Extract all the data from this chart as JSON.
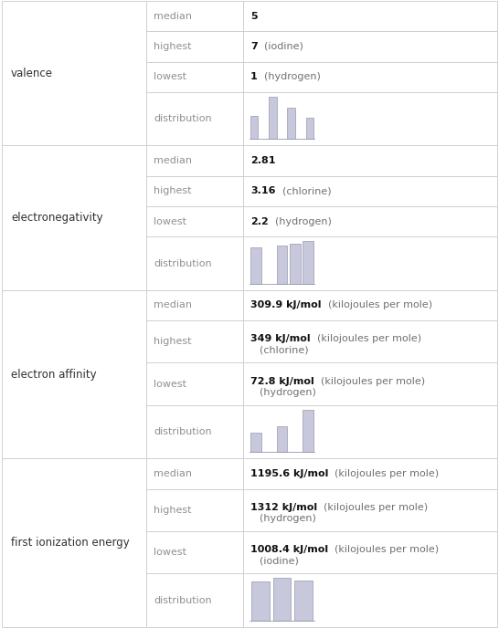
{
  "sections": [
    {
      "name": "valence",
      "rows": [
        {
          "label": "median",
          "bold": "5",
          "normal": ""
        },
        {
          "label": "highest",
          "bold": "7",
          "normal": "  (iodine)"
        },
        {
          "label": "lowest",
          "bold": "1",
          "normal": "  (hydrogen)"
        },
        {
          "label": "distribution",
          "chart_id": "valence_dist"
        }
      ]
    },
    {
      "name": "electronegativity",
      "rows": [
        {
          "label": "median",
          "bold": "2.81",
          "normal": ""
        },
        {
          "label": "highest",
          "bold": "3.16",
          "normal": "  (chlorine)"
        },
        {
          "label": "lowest",
          "bold": "2.2",
          "normal": "  (hydrogen)"
        },
        {
          "label": "distribution",
          "chart_id": "en_dist"
        }
      ]
    },
    {
      "name": "electron affinity",
      "rows": [
        {
          "label": "median",
          "bold": "309.9 kJ/mol",
          "normal": "  (kilojoules per mole)"
        },
        {
          "label": "highest",
          "bold": "349 kJ/mol",
          "normal": "  (kilojoules per mole)",
          "extra": "(chlorine)"
        },
        {
          "label": "lowest",
          "bold": "72.8 kJ/mol",
          "normal": "  (kilojoules per mole)",
          "extra": "(hydrogen)"
        },
        {
          "label": "distribution",
          "chart_id": "ea_dist"
        }
      ]
    },
    {
      "name": "first ionization energy",
      "rows": [
        {
          "label": "median",
          "bold": "1195.6 kJ/mol",
          "normal": "  (kilojoules per mole)"
        },
        {
          "label": "highest",
          "bold": "1312 kJ/mol",
          "normal": "  (kilojoules per mole)",
          "extra": "(hydrogen)"
        },
        {
          "label": "lowest",
          "bold": "1008.4 kJ/mol",
          "normal": "  (kilojoules per mole)",
          "extra": "(iodine)"
        },
        {
          "label": "distribution",
          "chart_id": "fie_dist"
        }
      ]
    }
  ],
  "charts": {
    "valence_dist": [
      0.55,
      0.0,
      1.0,
      0.0,
      0.75,
      0.0,
      0.5
    ],
    "en_dist": [
      0.85,
      0.0,
      0.9,
      0.95,
      1.0
    ],
    "ea_dist": [
      0.45,
      0.0,
      0.62,
      0.0,
      1.0
    ],
    "fie_dist": [
      0.92,
      1.0,
      0.95
    ]
  },
  "bar_color": "#c8c8dc",
  "bar_edge_color": "#9898b0",
  "grid_color": "#d0d0d0",
  "text_section": "#303030",
  "text_label": "#909090",
  "text_bold": "#101010",
  "text_normal": "#707070",
  "bg": "#ffffff"
}
